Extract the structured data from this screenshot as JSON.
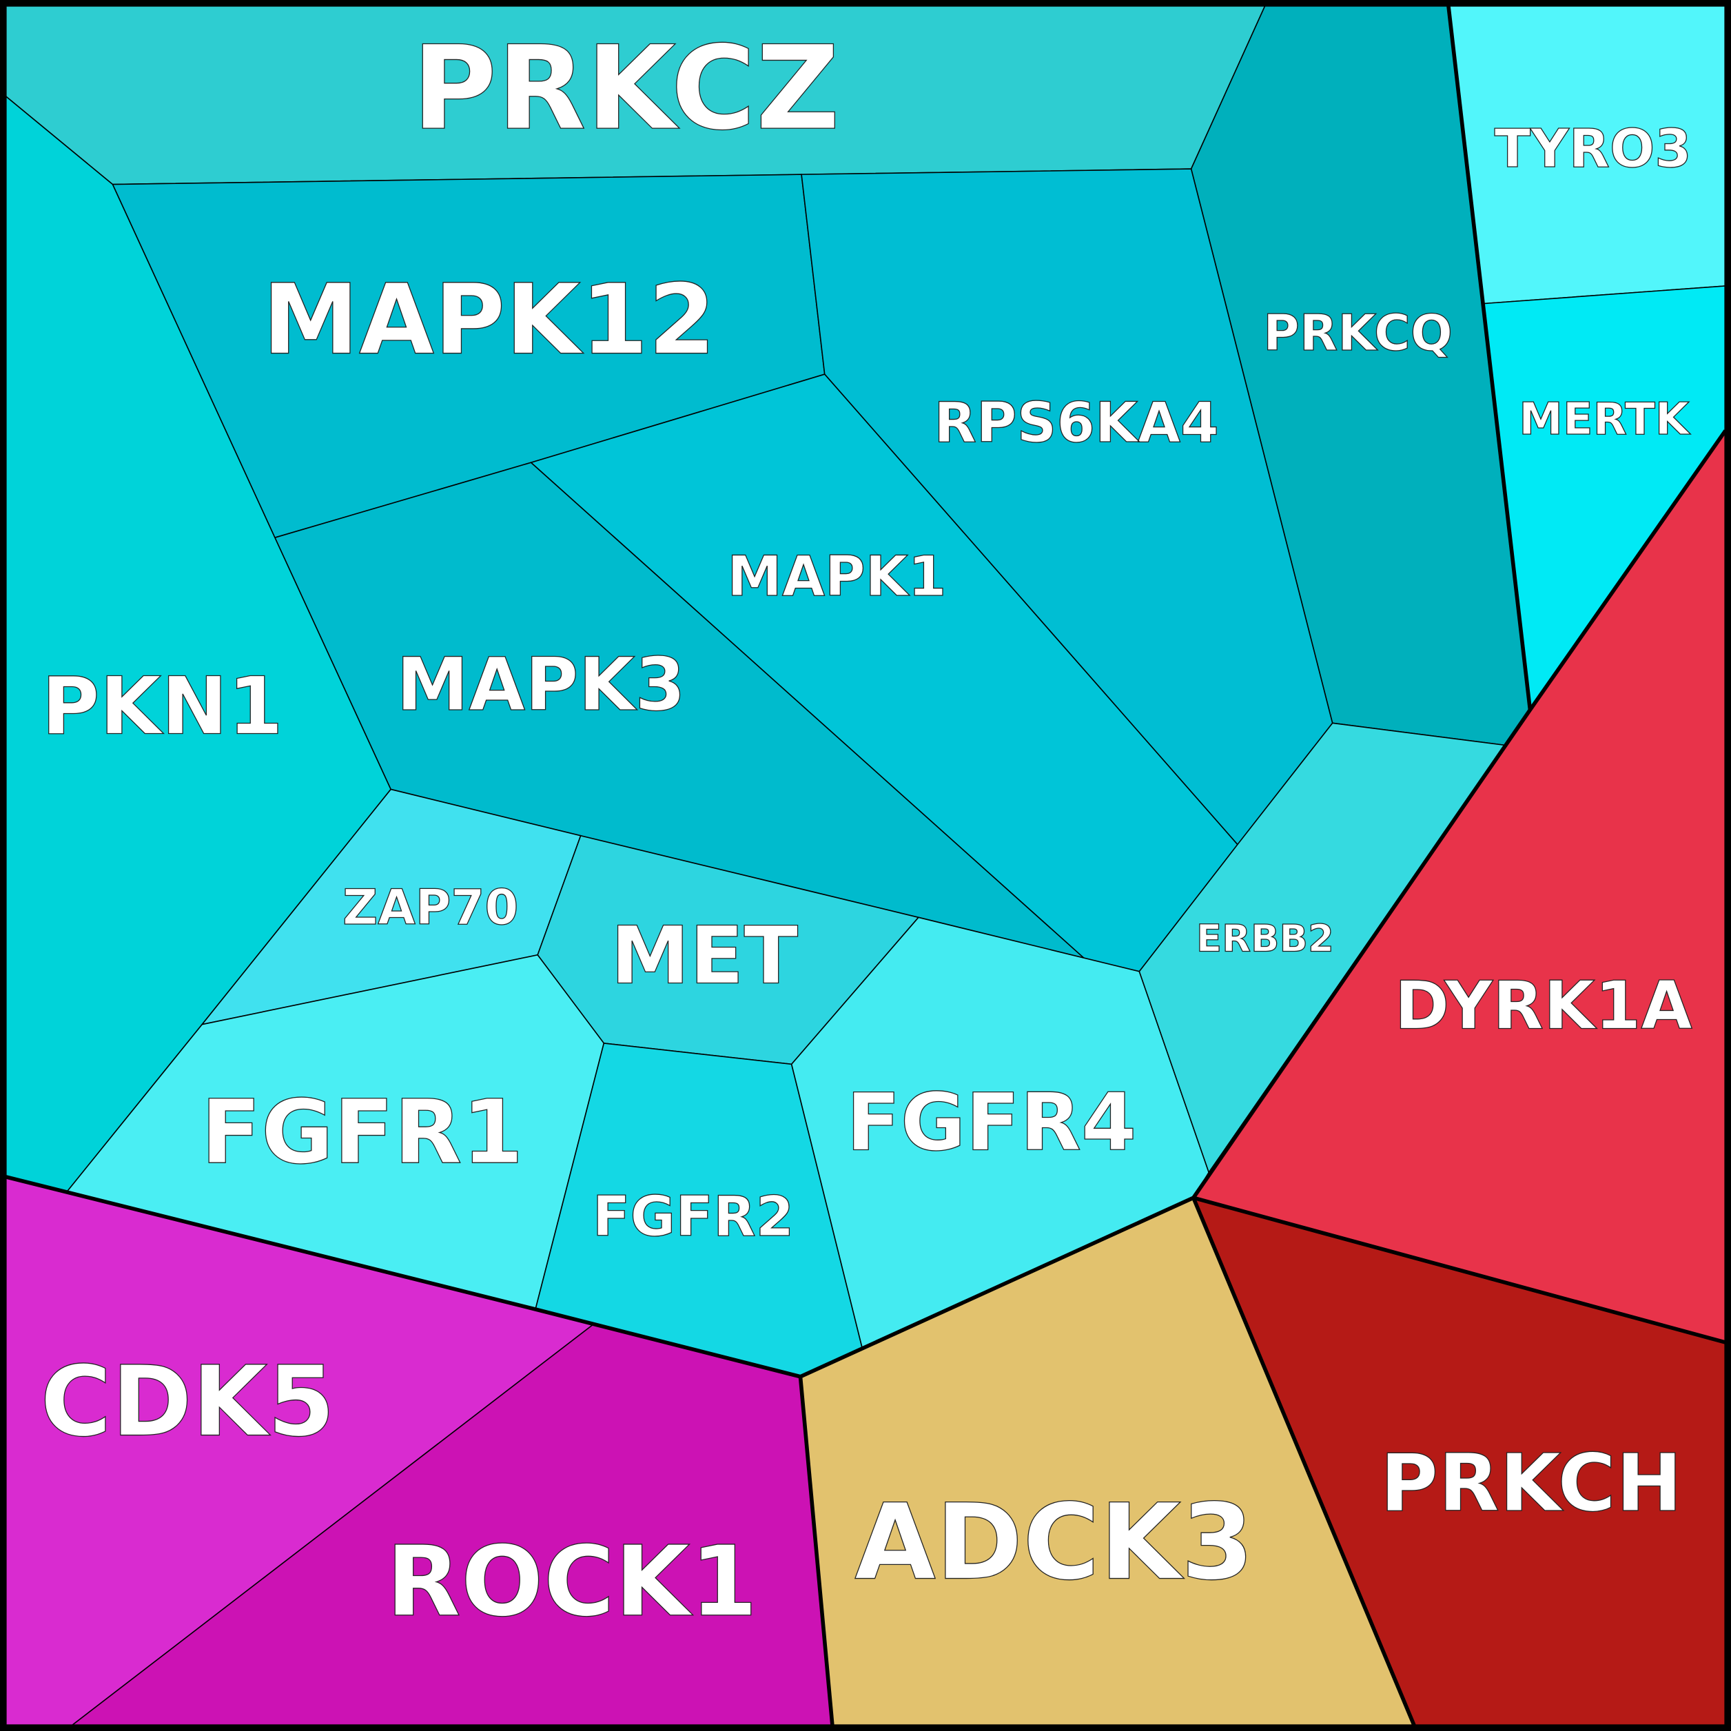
{
  "cells": [
    {
      "label": "PRKCZ"
    },
    {
      "label": "PRKCQ"
    },
    {
      "label": "TYRO3"
    },
    {
      "label": "MERTK"
    },
    {
      "label": "MAPK12"
    },
    {
      "label": "RPS6KA4"
    },
    {
      "label": "MAPK1"
    },
    {
      "label": "MAPK3"
    },
    {
      "label": "PKN1"
    },
    {
      "label": "ZAP70"
    },
    {
      "label": "MET"
    },
    {
      "label": "FGFR1"
    },
    {
      "label": "FGFR2"
    },
    {
      "label": "FGFR4"
    },
    {
      "label": "ERBB2"
    },
    {
      "label": "DYRK1A"
    },
    {
      "label": "PRKCH"
    },
    {
      "label": "ADCK3"
    },
    {
      "label": "CDK5"
    },
    {
      "label": "ROCK1"
    }
  ]
}
